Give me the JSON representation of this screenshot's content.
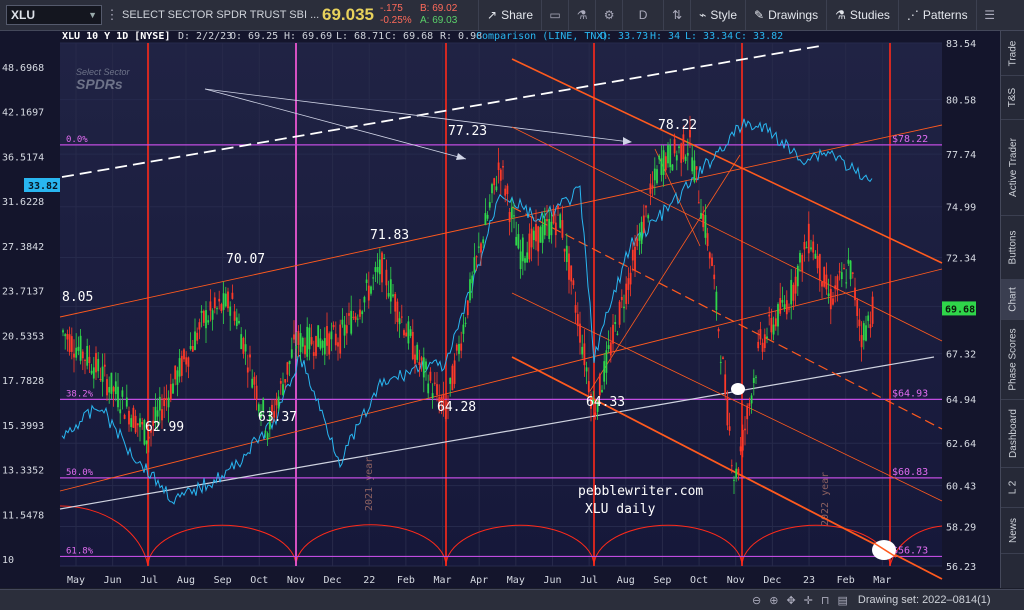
{
  "toolbar": {
    "symbol": "XLU",
    "name": "SELECT SECTOR SPDR TRUST SBI ...",
    "price": "69.035",
    "change": "-.175",
    "change_pct": "-0.25%",
    "bid": "B: 69.02",
    "ask": "A: 69.03",
    "buttons": {
      "share": "Share",
      "d": "D",
      "style": "Style",
      "drawings": "Drawings",
      "studies": "Studies",
      "patterns": "Patterns"
    }
  },
  "header": {
    "symbol_period": "XLU 10 Y 1D [NYSE]",
    "date": "D: 2/2/23",
    "open": "O: 69.25",
    "high": "H: 69.69",
    "low": "L: 68.71",
    "close": "C: 69.68",
    "range": "R: 0.98",
    "comparison": "Comparison (LINE, TNX)",
    "cmp_open": "O: 33.73",
    "cmp_high": "H: 34",
    "cmp_low": "L: 33.34",
    "cmp_close": "C: 33.82"
  },
  "watermark": {
    "line1": "Select Sector",
    "line2": "SPDRs"
  },
  "sidebar_tabs": [
    "Trade",
    "T&S",
    "Active Trader",
    "Buttons",
    "Chart",
    "Phase Scores",
    "Dashboard",
    "L 2",
    "News"
  ],
  "active_tab": "Chart",
  "status": {
    "drawing_set": "Drawing set: 2022–0814(1)"
  },
  "chart_data": {
    "type": "candlestick",
    "title": "XLU 10 Y 1D [NYSE]",
    "left_axis": {
      "label": "TNX",
      "ticks": [
        "48.6968",
        "42.1697",
        "36.5174",
        "31.6228",
        "27.3842",
        "23.7137",
        "20.5353",
        "17.7828",
        "15.3993",
        "13.3352",
        "11.5478",
        "10"
      ]
    },
    "right_axis": {
      "label": "XLU",
      "ticks": [
        "83.54",
        "80.58",
        "77.74",
        "74.99",
        "72.34",
        "69.79",
        "67.32",
        "64.94",
        "62.64",
        "60.43",
        "58.29",
        "56.23"
      ],
      "range": [
        56.23,
        83.54
      ]
    },
    "x_ticks": [
      "May",
      "Jun",
      "Jul",
      "Aug",
      "Sep",
      "Oct",
      "Nov",
      "Dec",
      "22",
      "Feb",
      "Mar",
      "Apr",
      "May",
      "Jun",
      "Jul",
      "Aug",
      "Sep",
      "Oct",
      "Nov",
      "Dec",
      "23",
      "Feb",
      "Mar"
    ],
    "price_labels": {
      "last": "69.68",
      "tnx_last": "33.82"
    },
    "fib_levels": [
      {
        "pct": "0.0%",
        "price": "$78.22"
      },
      {
        "pct": "38.2%",
        "price": "$64.93"
      },
      {
        "pct": "50.0%",
        "price": "$60.83"
      },
      {
        "pct": "61.8%",
        "price": "$56.73"
      }
    ],
    "annotations": [
      "8.05",
      "70.07",
      "71.83",
      "77.23",
      "78.22",
      "62.99",
      "63.37",
      "64.28",
      "64.33",
      "pebblewriter.com",
      "XLU daily",
      "2021 year",
      "2022 year"
    ],
    "swing_points": [
      {
        "date": "Jul",
        "price": 62.99
      },
      {
        "date": "Sep",
        "price": 70.07
      },
      {
        "date": "Oct",
        "price": 63.37
      },
      {
        "date": "22",
        "price": 71.83
      },
      {
        "date": "Mar",
        "price": 64.28
      },
      {
        "date": "Apr",
        "price": 77.23
      },
      {
        "date": "Jun",
        "price": 64.33
      },
      {
        "date": "Sep",
        "price": 78.22
      }
    ],
    "colors": {
      "up": "#2fd64a",
      "down": "#ff3a28",
      "tnx": "#29b6f0",
      "fib": "#c04ce0",
      "channel": "#ff5a1e",
      "cycle": "#ff2a1a"
    }
  }
}
